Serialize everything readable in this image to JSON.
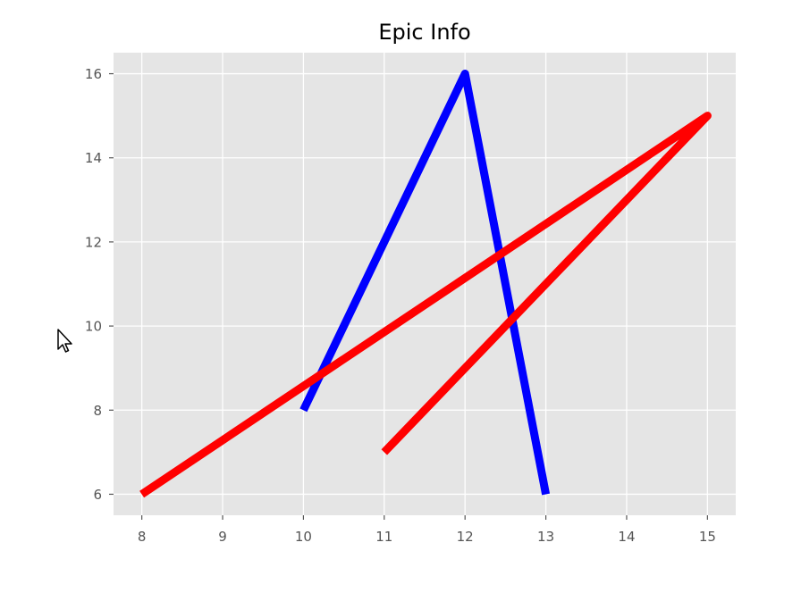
{
  "chart_data": {
    "type": "line",
    "title": "Epic Info",
    "xlabel": "",
    "ylabel": "",
    "xlim": [
      7.65,
      15.35
    ],
    "ylim": [
      5.5,
      16.5
    ],
    "xticks": [
      8,
      9,
      10,
      11,
      12,
      13,
      14,
      15
    ],
    "yticks": [
      6,
      8,
      10,
      12,
      14,
      16
    ],
    "grid": true,
    "background": "#e5e5e5",
    "grid_color": "#ffffff",
    "series": [
      {
        "color": "#0000ff",
        "x": [
          10,
          12,
          13
        ],
        "y": [
          8,
          16,
          6
        ]
      },
      {
        "color": "#ff0000",
        "x": [
          8,
          15,
          11
        ],
        "y": [
          6,
          15,
          7
        ]
      }
    ]
  },
  "icons": {
    "cursor": "mouse-pointer-icon"
  }
}
